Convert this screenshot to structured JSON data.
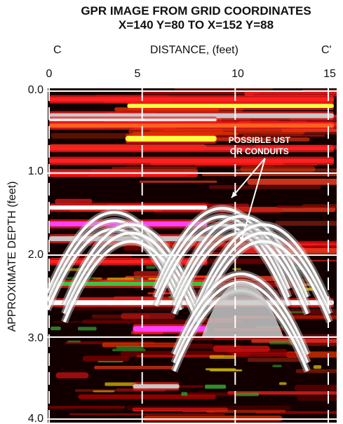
{
  "chart_data": {
    "type": "heatmap",
    "title": "GPR IMAGE FROM GRID COORDINATES",
    "subtitle": "X=140 Y=80 TO X=152 Y=88",
    "xlabel": "DISTANCE, (feet)",
    "ylabel": "APPROXIMATE DEPTH (feet)",
    "section_start": "C",
    "section_end": "C'",
    "x_ticks": [
      "0",
      "5",
      "10",
      "15"
    ],
    "x_tick_values": [
      0,
      5,
      10,
      15
    ],
    "y_ticks": [
      "0.0",
      "1.0",
      "2.0",
      "3.0",
      "4.0"
    ],
    "y_tick_values": [
      0,
      1,
      2,
      3,
      4
    ],
    "xlim": [
      0,
      15.3
    ],
    "ylim": [
      0,
      4.0
    ],
    "grid": true,
    "annotations": [
      {
        "text": [
          "POSSIBLE UST",
          "OR CONDUITS"
        ],
        "x": 11.3,
        "y": 0.7,
        "arrow_to": [
          [
            9.8,
            1.3
          ],
          [
            10.3,
            1.85
          ]
        ]
      }
    ],
    "reflectors": [
      {
        "x0": 0.0,
        "x1": 15.3,
        "depth": 0.1,
        "thickness": 0.05,
        "color": "#ff2020"
      },
      {
        "x0": 4.2,
        "x1": 15.3,
        "depth": 0.18,
        "thickness": 0.05,
        "color": "#ffff40"
      },
      {
        "x0": 0.0,
        "x1": 15.3,
        "depth": 0.3,
        "thickness": 0.06,
        "color": "#c8c8c8"
      },
      {
        "x0": 0.0,
        "x1": 9.0,
        "depth": 0.35,
        "thickness": 0.03,
        "color": "#ffffff"
      },
      {
        "x0": 0.0,
        "x1": 15.3,
        "depth": 0.42,
        "thickness": 0.05,
        "color": "#ff6020"
      },
      {
        "x0": 4.1,
        "x1": 9.0,
        "depth": 0.58,
        "thickness": 0.07,
        "color": "#ffff40"
      },
      {
        "x0": 0.0,
        "x1": 15.3,
        "depth": 0.7,
        "thickness": 0.04,
        "color": "#ff2020"
      },
      {
        "x0": 0.0,
        "x1": 15.3,
        "depth": 0.85,
        "thickness": 0.05,
        "color": "#ff2020"
      },
      {
        "x0": 0.0,
        "x1": 8.0,
        "depth": 1.0,
        "thickness": 0.05,
        "color": "#ff2020"
      },
      {
        "x0": 0.0,
        "x1": 8.5,
        "depth": 1.42,
        "thickness": 0.05,
        "color": "#ffffff"
      },
      {
        "x0": 0.0,
        "x1": 8.5,
        "depth": 1.62,
        "thickness": 0.06,
        "color": "#ff40ff"
      },
      {
        "x0": 0.0,
        "x1": 8.5,
        "depth": 1.8,
        "thickness": 0.06,
        "color": "#c8c8c8"
      },
      {
        "x0": 0.0,
        "x1": 8.5,
        "depth": 2.08,
        "thickness": 0.04,
        "color": "#ff2020"
      },
      {
        "x0": 0.0,
        "x1": 9.0,
        "depth": 2.35,
        "thickness": 0.05,
        "color": "#40c040"
      },
      {
        "x0": 0.0,
        "x1": 15.3,
        "depth": 2.58,
        "thickness": 0.06,
        "color": "#ffffff"
      },
      {
        "x0": 4.5,
        "x1": 8.5,
        "depth": 2.9,
        "thickness": 0.07,
        "color": "#ff40ff"
      },
      {
        "x0": 4.5,
        "x1": 7.0,
        "depth": 3.6,
        "thickness": 0.05,
        "color": "#c8c8c8"
      }
    ],
    "hyperbolas": [
      {
        "x": 3.5,
        "depth": 1.35,
        "color": "#ffffff"
      },
      {
        "x": 4.4,
        "depth": 1.5,
        "color": "#ffffff"
      },
      {
        "x": 9.3,
        "depth": 1.3,
        "color": "#ffffff"
      },
      {
        "x": 10.3,
        "depth": 1.4,
        "color": "#ffffff"
      },
      {
        "x": 11.5,
        "depth": 1.5,
        "color": "#ffffff"
      },
      {
        "x": 10.3,
        "depth": 2.1,
        "color": "#ffffff"
      }
    ]
  }
}
